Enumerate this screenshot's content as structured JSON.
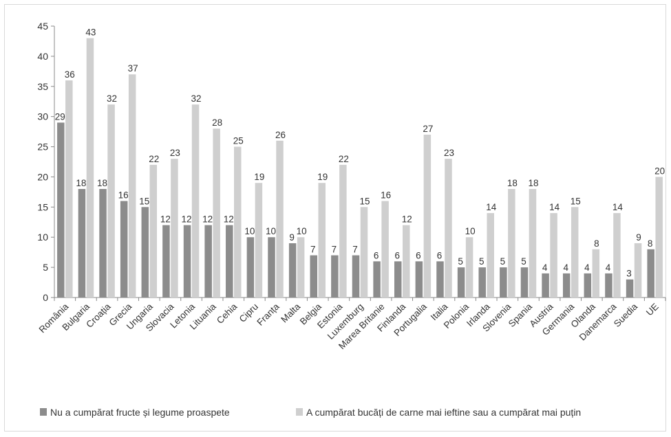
{
  "chart_data": {
    "type": "bar",
    "categories": [
      "România",
      "Bulgaria",
      "Croația",
      "Grecia",
      "Ungaria",
      "Slovacia",
      "Letonia",
      "Lituania",
      "Cehia",
      "Cipru",
      "Franța",
      "Malta",
      "Belgia",
      "Estonia",
      "Luxemburg",
      "Marea Britanie",
      "Finlanda",
      "Portugalia",
      "Italia",
      "Polonia",
      "Irlanda",
      "Slovenia",
      "Spania",
      "Austria",
      "Germania",
      "Olanda",
      "Danemarca",
      "Suedia",
      "UE"
    ],
    "series": [
      {
        "name": "Nu a cumpărat fructe și legume proaspete",
        "color": "#8c8c8c",
        "values": [
          29,
          18,
          18,
          16,
          15,
          12,
          12,
          12,
          12,
          10,
          10,
          9,
          7,
          7,
          7,
          6,
          6,
          6,
          6,
          5,
          5,
          5,
          5,
          4,
          4,
          4,
          4,
          3,
          8
        ]
      },
      {
        "name": "A cumpărat bucăți de carne mai ieftine sau a cumpărat mai puțin",
        "color": "#cfcfcf",
        "values": [
          36,
          43,
          32,
          37,
          22,
          23,
          32,
          28,
          25,
          19,
          26,
          10,
          19,
          22,
          15,
          16,
          12,
          27,
          23,
          10,
          14,
          18,
          18,
          14,
          15,
          8,
          14,
          9,
          20
        ]
      }
    ],
    "y_ticks": [
      "0",
      "5",
      "10",
      "15",
      "20",
      "25",
      "30",
      "35",
      "40",
      "45"
    ],
    "ylim": [
      0,
      45
    ],
    "grid": false,
    "legend_position": "bottom-left",
    "data_labels": true
  }
}
